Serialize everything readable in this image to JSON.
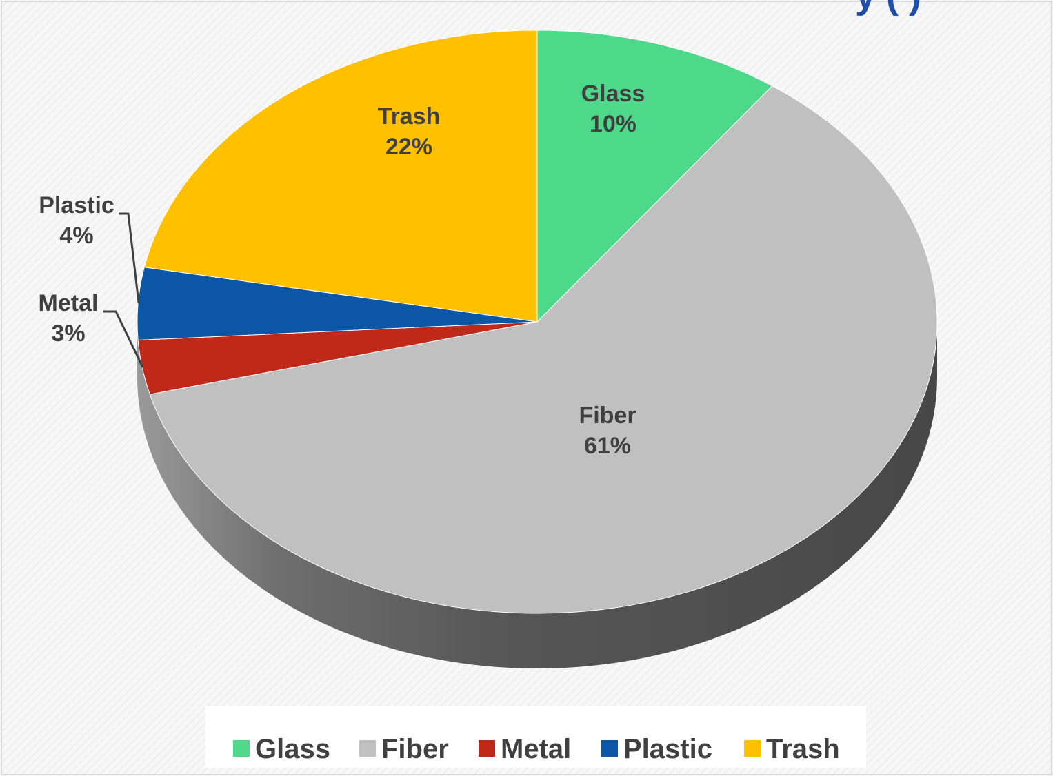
{
  "title_fragment": "y (    )",
  "chart_data": {
    "type": "pie",
    "style": "3d",
    "categories": [
      "Glass",
      "Fiber",
      "Metal",
      "Plastic",
      "Trash"
    ],
    "values": [
      10,
      61,
      3,
      4,
      22
    ],
    "labels": [
      "10%",
      "61%",
      "3%",
      "4%",
      "22%"
    ],
    "colors": [
      "#4ed98a",
      "#c0c0c0",
      "#c0281a",
      "#0c56a6",
      "#ffc000"
    ],
    "legend_position": "bottom",
    "start": "top, clockwise"
  }
}
